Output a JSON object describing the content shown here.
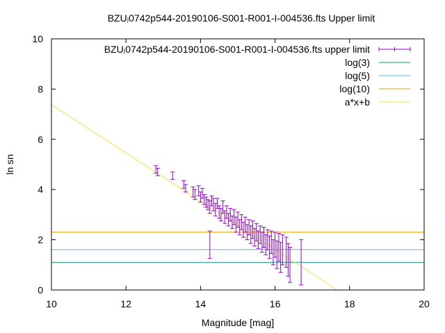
{
  "chart_data": {
    "type": "scatter",
    "title": "BZUⱼ0742p544-20190106-S001-R001-I-004536.fts Upper limit",
    "xlabel": "Magnitude [mag]",
    "ylabel": "ln sn",
    "xlim": [
      10,
      20
    ],
    "ylim": [
      0,
      10
    ],
    "xticks": [
      "10",
      "12",
      "14",
      "16",
      "18",
      "20"
    ],
    "yticks": [
      "0",
      "2",
      "4",
      "6",
      "8",
      "10"
    ],
    "grid": false,
    "legend_placement": "top-right",
    "legend": [
      {
        "label": "BZUⱼ0742p544-20190106-S001-R001-I-004536.fts upper limit",
        "color": "#9400d3",
        "style": "errorbar"
      },
      {
        "label": "log(3)",
        "color": "#009e73",
        "style": "line"
      },
      {
        "label": "log(5)",
        "color": "#56b4e9",
        "style": "line"
      },
      {
        "label": "log(10)",
        "color": "#e69f00",
        "style": "line"
      },
      {
        "label": "a*x+b",
        "color": "#f0e442",
        "style": "line"
      }
    ],
    "hlines": [
      {
        "name": "log(3)",
        "y": 1.0986,
        "color": "#009e73"
      },
      {
        "name": "log(5)",
        "y": 1.6094,
        "color": "#56b4e9"
      },
      {
        "name": "log(10)",
        "y": 2.3026,
        "color": "#e69f00"
      }
    ],
    "fit_line": {
      "name": "a*x+b",
      "a": -0.962,
      "b": 17.0,
      "color": "#f0e442"
    },
    "series": [
      {
        "name": "BZUⱼ0742p544-20190106-S001-R001-I-004536.fts upper limit",
        "color": "#9400d3",
        "points": [
          [
            12.8,
            4.8,
            0.15
          ],
          [
            12.85,
            4.7,
            0.15
          ],
          [
            13.25,
            4.55,
            0.15
          ],
          [
            13.55,
            4.2,
            0.15
          ],
          [
            13.6,
            4.05,
            0.15
          ],
          [
            13.8,
            3.9,
            0.2
          ],
          [
            13.85,
            3.8,
            0.2
          ],
          [
            13.95,
            3.95,
            0.2
          ],
          [
            14.0,
            3.7,
            0.2
          ],
          [
            14.05,
            3.85,
            0.2
          ],
          [
            14.1,
            3.6,
            0.2
          ],
          [
            14.15,
            3.5,
            0.2
          ],
          [
            14.2,
            3.4,
            0.2
          ],
          [
            14.25,
            3.3,
            0.25
          ],
          [
            14.25,
            1.8,
            0.55
          ],
          [
            14.3,
            3.55,
            0.2
          ],
          [
            14.35,
            3.4,
            0.25
          ],
          [
            14.4,
            3.2,
            0.25
          ],
          [
            14.45,
            3.45,
            0.2
          ],
          [
            14.5,
            3.1,
            0.25
          ],
          [
            14.55,
            3.0,
            0.25
          ],
          [
            14.6,
            3.3,
            0.25
          ],
          [
            14.65,
            2.9,
            0.25
          ],
          [
            14.7,
            3.1,
            0.25
          ],
          [
            14.75,
            2.8,
            0.25
          ],
          [
            14.8,
            3.0,
            0.25
          ],
          [
            14.85,
            2.7,
            0.25
          ],
          [
            14.9,
            2.9,
            0.3
          ],
          [
            14.95,
            2.6,
            0.3
          ],
          [
            15.0,
            2.8,
            0.3
          ],
          [
            15.05,
            2.5,
            0.3
          ],
          [
            15.1,
            2.7,
            0.3
          ],
          [
            15.15,
            2.4,
            0.3
          ],
          [
            15.2,
            2.6,
            0.3
          ],
          [
            15.25,
            2.3,
            0.3
          ],
          [
            15.3,
            2.5,
            0.3
          ],
          [
            15.35,
            2.2,
            0.35
          ],
          [
            15.4,
            2.4,
            0.35
          ],
          [
            15.45,
            2.1,
            0.35
          ],
          [
            15.5,
            2.3,
            0.35
          ],
          [
            15.55,
            2.0,
            0.35
          ],
          [
            15.6,
            2.2,
            0.35
          ],
          [
            15.65,
            1.9,
            0.4
          ],
          [
            15.7,
            2.1,
            0.4
          ],
          [
            15.75,
            1.8,
            0.4
          ],
          [
            15.8,
            2.0,
            0.4
          ],
          [
            15.85,
            1.7,
            0.45
          ],
          [
            15.9,
            1.9,
            0.45
          ],
          [
            15.95,
            1.5,
            0.5
          ],
          [
            16.0,
            1.8,
            0.5
          ],
          [
            16.05,
            1.4,
            0.55
          ],
          [
            16.1,
            1.7,
            0.55
          ],
          [
            16.15,
            1.3,
            0.6
          ],
          [
            16.2,
            1.6,
            0.6
          ],
          [
            16.3,
            1.5,
            0.6
          ],
          [
            16.35,
            1.2,
            0.65
          ],
          [
            16.4,
            1.0,
            0.7
          ],
          [
            16.7,
            1.1,
            0.9
          ]
        ]
      }
    ]
  }
}
